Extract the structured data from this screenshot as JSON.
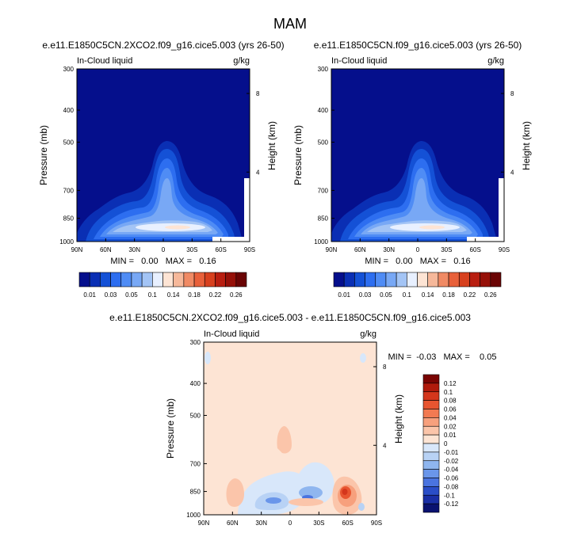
{
  "figure": {
    "title": "MAM"
  },
  "chart_data": [
    {
      "type": "heatmap",
      "title": "e.e11.E1850C5CN.2XCO2.f09_g16.cice5.003 (yrs 26-50)",
      "left_string": "In-Cloud liquid",
      "right_string": "g/kg",
      "xlabel": "",
      "ylabel": "Pressure (mb)",
      "y2label": "Height (km)",
      "x_ticks": [
        "90N",
        "60N",
        "30N",
        "0",
        "30S",
        "60S",
        "90S"
      ],
      "x_tick_values": [
        90,
        60,
        30,
        0,
        -30,
        -60,
        -90
      ],
      "xlim": [
        90,
        -90
      ],
      "y_ticks": [
        "300",
        "400",
        "500",
        "700",
        "850",
        "1000"
      ],
      "y_tick_values": [
        300,
        400,
        500,
        700,
        850,
        1000
      ],
      "ylim": [
        1000,
        300
      ],
      "y_scale": "log",
      "y2_ticks": [
        "8",
        "4"
      ],
      "y2_tick_values_mb": [
        356,
        616
      ],
      "stats": "MIN =   0.00   MAX =   0.16",
      "min": 0.0,
      "max": 0.16,
      "colorbar": {
        "orientation": "horizontal",
        "labels": [
          "0.01",
          "0.03",
          "0.05",
          "0.1",
          "0.14",
          "0.18",
          "0.22",
          "0.26"
        ],
        "levels": [
          0.01,
          0.02,
          0.03,
          0.04,
          0.05,
          0.07,
          0.1,
          0.12,
          0.14,
          0.16,
          0.18,
          0.2,
          0.22,
          0.24,
          0.26
        ],
        "colors": [
          "#050f8c",
          "#0a2fb4",
          "#1451d6",
          "#2d6ef0",
          "#4f8cf5",
          "#78a8f5",
          "#a3c4f5",
          "#e8f0ff",
          "#fde4d4",
          "#f6b89a",
          "#f08a64",
          "#e8603a",
          "#d7401e",
          "#b81e10",
          "#961008",
          "#6a0404"
        ]
      },
      "features": [
        {
          "name": "upper-free-troposphere",
          "value": 0.01
        },
        {
          "name": "tropical-plume",
          "lat_center": 2,
          "top_mb": 500,
          "value_range": [
            0.03,
            0.07
          ]
        },
        {
          "name": "southern-boundary-layer-max",
          "lat_center": -20,
          "p_center_mb": 920,
          "value": 0.14
        },
        {
          "name": "northern-boundary-layer",
          "lat_center": 35,
          "p_center_mb": 920,
          "value": 0.07
        }
      ]
    },
    {
      "type": "heatmap",
      "title": "e.e11.E1850C5CN.f09_g16.cice5.003 (yrs 26-50)",
      "left_string": "In-Cloud liquid",
      "right_string": "g/kg",
      "xlabel": "",
      "ylabel": "Pressure (mb)",
      "y2label": "Height (km)",
      "x_ticks": [
        "90N",
        "60N",
        "30N",
        "0",
        "30S",
        "60S",
        "90S"
      ],
      "x_tick_values": [
        90,
        60,
        30,
        0,
        -30,
        -60,
        -90
      ],
      "xlim": [
        90,
        -90
      ],
      "y_ticks": [
        "300",
        "400",
        "500",
        "700",
        "850",
        "1000"
      ],
      "y_tick_values": [
        300,
        400,
        500,
        700,
        850,
        1000
      ],
      "ylim": [
        1000,
        300
      ],
      "y_scale": "log",
      "y2_ticks": [
        "8",
        "4"
      ],
      "y2_tick_values_mb": [
        356,
        616
      ],
      "stats": "MIN =   0.00   MAX =   0.16",
      "min": 0.0,
      "max": 0.16,
      "colorbar": {
        "orientation": "horizontal",
        "labels": [
          "0.01",
          "0.03",
          "0.05",
          "0.1",
          "0.14",
          "0.18",
          "0.22",
          "0.26"
        ],
        "levels": [
          0.01,
          0.02,
          0.03,
          0.04,
          0.05,
          0.07,
          0.1,
          0.12,
          0.14,
          0.16,
          0.18,
          0.2,
          0.22,
          0.24,
          0.26
        ],
        "colors": [
          "#050f8c",
          "#0a2fb4",
          "#1451d6",
          "#2d6ef0",
          "#4f8cf5",
          "#78a8f5",
          "#a3c4f5",
          "#e8f0ff",
          "#fde4d4",
          "#f6b89a",
          "#f08a64",
          "#e8603a",
          "#d7401e",
          "#b81e10",
          "#961008",
          "#6a0404"
        ]
      },
      "features": [
        {
          "name": "upper-free-troposphere",
          "value": 0.01
        },
        {
          "name": "tropical-plume",
          "lat_center": 2,
          "top_mb": 500,
          "value_range": [
            0.03,
            0.07
          ]
        },
        {
          "name": "southern-boundary-layer-max",
          "lat_center": -20,
          "p_center_mb": 920,
          "value": 0.14
        },
        {
          "name": "northern-boundary-layer",
          "lat_center": 35,
          "p_center_mb": 920,
          "value": 0.07
        }
      ]
    },
    {
      "type": "heatmap",
      "title": "e.e11.E1850C5CN.2XCO2.f09_g16.cice5.003 - e.e11.E1850C5CN.f09_g16.cice5.003",
      "left_string": "In-Cloud liquid",
      "right_string": "g/kg",
      "xlabel": "",
      "ylabel": "Pressure (mb)",
      "y2label": "Height (km)",
      "x_ticks": [
        "90N",
        "60N",
        "30N",
        "0",
        "30S",
        "60S",
        "90S"
      ],
      "x_tick_values": [
        90,
        60,
        30,
        0,
        -30,
        -60,
        -90
      ],
      "xlim": [
        90,
        -90
      ],
      "y_ticks": [
        "300",
        "400",
        "500",
        "700",
        "850",
        "1000"
      ],
      "y_tick_values": [
        300,
        400,
        500,
        700,
        850,
        1000
      ],
      "ylim": [
        1000,
        300
      ],
      "y_scale": "log",
      "y2_ticks": [
        "8",
        "4"
      ],
      "y2_tick_values_mb": [
        356,
        616
      ],
      "stats": "MIN =  -0.03   MAX =    0.05",
      "min": -0.03,
      "max": 0.05,
      "colorbar": {
        "orientation": "vertical",
        "labels": [
          "0.12",
          "0.1",
          "0.08",
          "0.06",
          "0.04",
          "0.02",
          "0.01",
          "0",
          "-0.01",
          "-0.02",
          "-0.04",
          "-0.06",
          "-0.08",
          "-0.1",
          "-0.12"
        ],
        "levels": [
          0.12,
          0.1,
          0.08,
          0.06,
          0.04,
          0.02,
          0.01,
          0,
          -0.01,
          -0.02,
          -0.04,
          -0.06,
          -0.08,
          -0.1,
          -0.12
        ],
        "colors": [
          "#7a0403",
          "#b01a0c",
          "#d4361c",
          "#e85530",
          "#f27a52",
          "#f7a07d",
          "#fbc5aa",
          "#fde4d4",
          "#d8e7fa",
          "#b8d2f5",
          "#8fb6ef",
          "#6a96ea",
          "#4a74e0",
          "#2a4ec8",
          "#1a2fa6",
          "#0a1270"
        ]
      },
      "background_value": 0.005,
      "features": [
        {
          "name": "negative-lobe-nh-midlat",
          "lat_center": 30,
          "p_center_mb": 850,
          "value": -0.02
        },
        {
          "name": "negative-lobe-tropics",
          "lat_center": 5,
          "p_center_mb": 850,
          "value": -0.03
        },
        {
          "name": "positive-lobe-sh-midlat",
          "lat_center": -60,
          "p_center_mb": 850,
          "value": 0.05
        },
        {
          "name": "positive-lobe-nh-highlat",
          "lat_center": 70,
          "p_center_mb": 800,
          "value": 0.02
        },
        {
          "name": "positive-lobe-sh-subtropics",
          "lat_center": -25,
          "p_center_mb": 870,
          "value": 0.02
        }
      ]
    }
  ]
}
